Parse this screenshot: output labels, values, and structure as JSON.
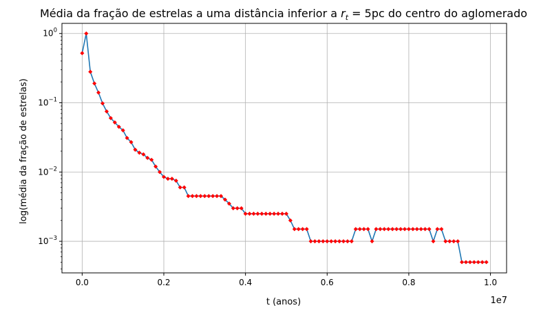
{
  "chart_data": {
    "type": "line",
    "title": "Média da fração de estrelas a uma distância inferior a ",
    "title_math_var": "r",
    "title_math_sub": "t",
    "title_math_eq": " = 5",
    "title_tail": "pc do centro do aglomerado",
    "xlabel": "t (anos)",
    "ylabel": "log(média da fração de estrelas)",
    "x_offset_label": "1e7",
    "xscale_factor": 10000000,
    "yscale": "log",
    "xlim": [
      -0.0495,
      1.0395
    ],
    "ylim": [
      0.00035,
      1.4
    ],
    "grid": true,
    "line_color": "#1f77b4",
    "marker_color": "#ff0000",
    "x_ticks": [
      {
        "value": 0.0,
        "label": "0.0"
      },
      {
        "value": 0.2,
        "label": "0.2"
      },
      {
        "value": 0.4,
        "label": "0.4"
      },
      {
        "value": 0.6,
        "label": "0.6"
      },
      {
        "value": 0.8,
        "label": "0.8"
      },
      {
        "value": 1.0,
        "label": "1.0"
      }
    ],
    "y_ticks": [
      {
        "value": 1,
        "base": "10",
        "exp": "0"
      },
      {
        "value": 0.1,
        "base": "10",
        "exp": "−1"
      },
      {
        "value": 0.01,
        "base": "10",
        "exp": "−2"
      },
      {
        "value": 0.001,
        "base": "10",
        "exp": "−3"
      }
    ],
    "series": [
      {
        "x": [
          0,
          100000,
          200000,
          300000,
          400000,
          500000,
          600000,
          700000,
          800000,
          900000,
          1000000,
          1100000,
          1200000,
          1300000,
          1400000,
          1500000,
          1600000,
          1700000,
          1800000,
          1900000,
          2000000,
          2100000,
          2200000,
          2300000,
          2400000,
          2500000,
          2600000,
          2700000,
          2800000,
          2900000,
          3000000,
          3100000,
          3200000,
          3300000,
          3400000,
          3500000,
          3600000,
          3700000,
          3800000,
          3900000,
          4000000,
          4100000,
          4200000,
          4300000,
          4400000,
          4500000,
          4600000,
          4700000,
          4800000,
          4900000,
          5000000,
          5100000,
          5200000,
          5300000,
          5400000,
          5500000,
          5600000,
          5700000,
          5800000,
          5900000,
          6000000,
          6100000,
          6200000,
          6300000,
          6400000,
          6500000,
          6600000,
          6700000,
          6800000,
          6900000,
          7000000,
          7100000,
          7200000,
          7300000,
          7400000,
          7500000,
          7600000,
          7700000,
          7800000,
          7900000,
          8000000,
          8100000,
          8200000,
          8300000,
          8400000,
          8500000,
          8600000,
          8700000,
          8800000,
          8900000,
          9000000,
          9100000,
          9200000,
          9300000,
          9400000,
          9500000,
          9600000,
          9700000,
          9800000,
          9900000
        ],
        "y": [
          0.52,
          1.0,
          0.28,
          0.19,
          0.14,
          0.098,
          0.075,
          0.06,
          0.052,
          0.045,
          0.04,
          0.031,
          0.027,
          0.021,
          0.019,
          0.018,
          0.016,
          0.015,
          0.012,
          0.01,
          0.0085,
          0.008,
          0.008,
          0.0075,
          0.006,
          0.006,
          0.0045,
          0.0045,
          0.0045,
          0.0045,
          0.0045,
          0.0045,
          0.0045,
          0.0045,
          0.0045,
          0.004,
          0.0035,
          0.003,
          0.003,
          0.003,
          0.0025,
          0.0025,
          0.0025,
          0.0025,
          0.0025,
          0.0025,
          0.0025,
          0.0025,
          0.0025,
          0.0025,
          0.0025,
          0.002,
          0.0015,
          0.0015,
          0.0015,
          0.0015,
          0.001,
          0.001,
          0.001,
          0.001,
          0.001,
          0.001,
          0.001,
          0.001,
          0.001,
          0.001,
          0.001,
          0.0015,
          0.0015,
          0.0015,
          0.0015,
          0.001,
          0.0015,
          0.0015,
          0.0015,
          0.0015,
          0.0015,
          0.0015,
          0.0015,
          0.0015,
          0.0015,
          0.0015,
          0.0015,
          0.0015,
          0.0015,
          0.0015,
          0.001,
          0.0015,
          0.0015,
          0.001,
          0.001,
          0.001,
          0.001,
          0.0005,
          0.0005,
          0.0005,
          0.0005,
          0.0005,
          0.0005,
          0.0005
        ]
      }
    ]
  }
}
